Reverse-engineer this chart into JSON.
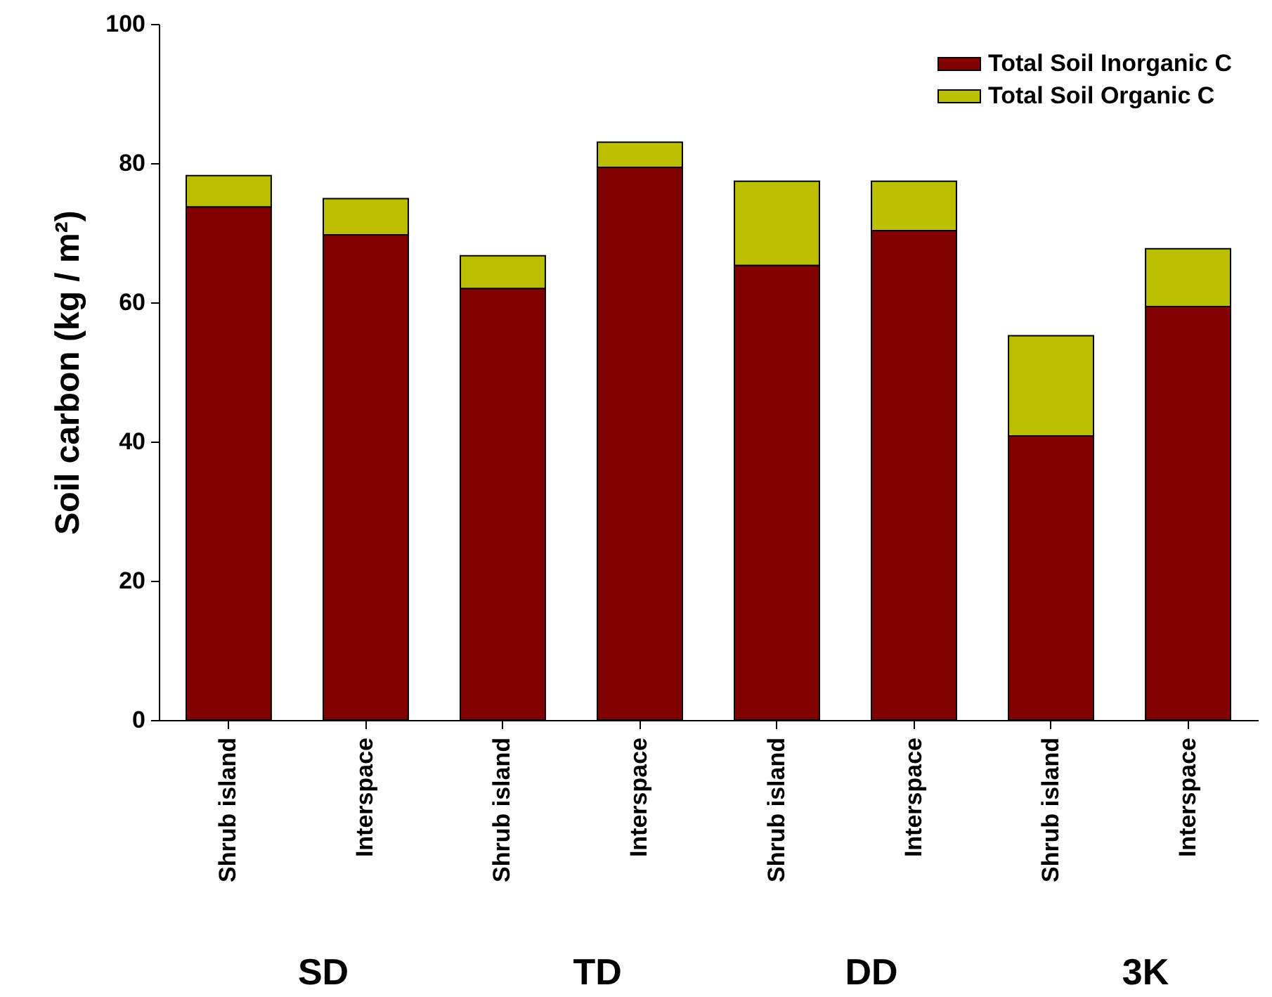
{
  "chart_data": {
    "type": "bar",
    "stacked": true,
    "ylabel": "Soil carbon (kg / m²)",
    "categories": [
      "Shrub island",
      "Interspace",
      "Shrub island",
      "Interspace",
      "Shrub island",
      "Interspace",
      "Shrub island",
      "Interspace"
    ],
    "series": [
      {
        "name": "Total Soil Inorganic C",
        "color": "#800000",
        "values": [
          73.7,
          69.7,
          62.0,
          79.4,
          65.3,
          70.3,
          40.8,
          59.4
        ]
      },
      {
        "name": "Total Soil Organic C",
        "color": "#bcbf00",
        "values": [
          4.5,
          5.2,
          4.7,
          3.6,
          12.1,
          7.1,
          14.4,
          8.3
        ]
      }
    ],
    "ylim": [
      0,
      100
    ],
    "yticks": [
      0,
      20,
      40,
      60,
      80,
      100
    ],
    "grid": false,
    "legend": "top right",
    "annotations": [
      "SD",
      "TD",
      "DD",
      "3K"
    ]
  }
}
